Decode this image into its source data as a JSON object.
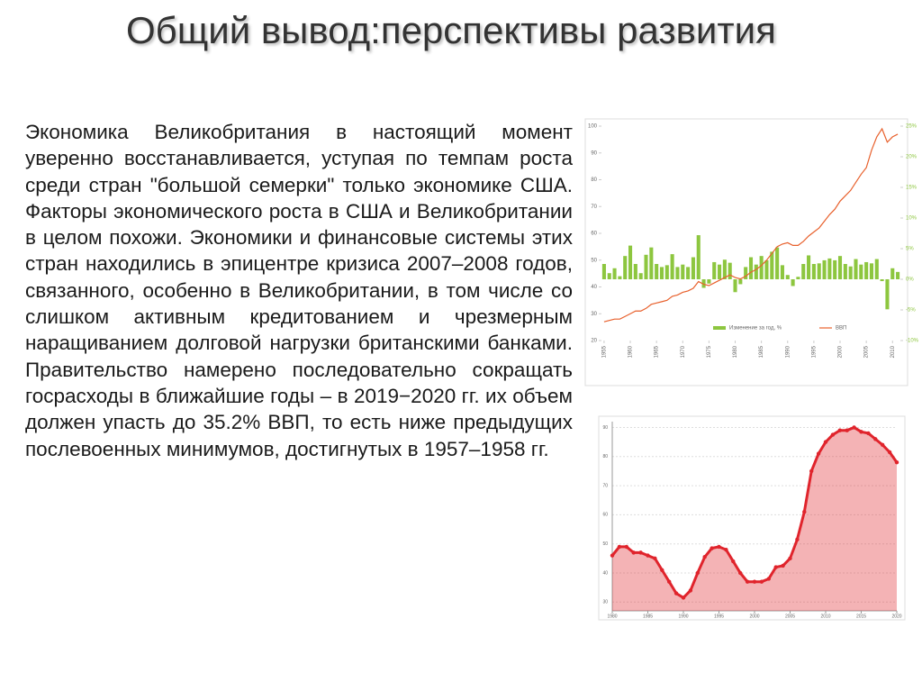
{
  "header": {
    "title": "Общий вывод:перспективы развития"
  },
  "body": {
    "text": "Экономика Великобритания в настоящий момент уверенно восстанавливается, уступая по темпам роста среди стран \"большой семерки\" только экономике США. Факторы экономического роста в США и Великобритании в целом похожи. Экономики и финансовые системы этих стран находились в эпицентре кризиса 2007–2008 годов, связанного, особенно в Великобритании, в том числе со слишком активным кредитованием и чрезмерным наращиванием долговой нагрузки британскими банками. Правительство намерено последовательно сокращать госрасходы в ближайшие годы – в 2019−2020 гг. их объем должен упасть до 35.2% ВВП, то есть ниже предыдущих послевоенных минимумов, достигнутых в 1957–1958 гг."
  },
  "chart_data": [
    {
      "type": "combo",
      "x": [
        1955,
        1956,
        1957,
        1958,
        1959,
        1960,
        1961,
        1962,
        1963,
        1964,
        1965,
        1966,
        1967,
        1968,
        1969,
        1970,
        1971,
        1972,
        1973,
        1974,
        1975,
        1976,
        1977,
        1978,
        1979,
        1980,
        1981,
        1982,
        1983,
        1984,
        1985,
        1986,
        1987,
        1988,
        1989,
        1990,
        1991,
        1992,
        1993,
        1994,
        1995,
        1996,
        1997,
        1998,
        1999,
        2000,
        2001,
        2002,
        2003,
        2004,
        2005,
        2006,
        2007,
        2008,
        2009,
        2010,
        2011
      ],
      "xlim": [
        1954.5,
        2011.5
      ],
      "xticks": [
        1955,
        1960,
        1965,
        1970,
        1975,
        1980,
        1985,
        1990,
        1995,
        2000,
        2005,
        2010
      ],
      "ylim": [
        20,
        100
      ],
      "yticks": [
        20,
        30,
        40,
        50,
        60,
        70,
        80,
        90,
        100
      ],
      "y2lim": [
        -10,
        25
      ],
      "y2ticks": [
        {
          "value": -10,
          "label": "-10%"
        },
        {
          "value": -5,
          "label": "-5%"
        },
        {
          "value": 0,
          "label": "0%"
        },
        {
          "value": 5,
          "label": "5%"
        },
        {
          "value": 10,
          "label": "10%"
        },
        {
          "value": 15,
          "label": "15%"
        },
        {
          "value": 20,
          "label": "20%"
        },
        {
          "value": 25,
          "label": "25%"
        }
      ],
      "series": [
        {
          "name": "Изменение за год, %",
          "type": "bar",
          "axis": "y2",
          "color": "#8dc63f",
          "values": [
            2.5,
            1,
            1.8,
            0.5,
            3.8,
            5.5,
            2.5,
            1,
            4,
            5.2,
            2.5,
            2,
            2.3,
            4.1,
            2,
            2.4,
            2,
            3.6,
            7.2,
            -1.4,
            -0.7,
            2.8,
            2.4,
            3.2,
            2.7,
            -2.1,
            -0.8,
            2,
            3.6,
            2.4,
            3.8,
            3.1,
            4.5,
            5.2,
            2.3,
            0.7,
            -1.1,
            0.4,
            2.5,
            3.9,
            2.5,
            2.6,
            3.1,
            3.4,
            3.1,
            3.8,
            2.5,
            2.1,
            3.3,
            2.4,
            2.8,
            2.6,
            3.3,
            -0.3,
            -4.9,
            1.8,
            1.2
          ]
        },
        {
          "name": "ВВП",
          "type": "line",
          "axis": "y",
          "color": "#e8602c",
          "values": [
            27,
            27.5,
            28,
            28,
            29,
            30,
            31,
            31,
            32,
            33.5,
            34,
            34.5,
            35,
            36.5,
            37,
            38,
            38.5,
            39.5,
            42,
            41,
            40.5,
            41.5,
            42.5,
            43.5,
            44.5,
            43.5,
            43,
            44,
            45.5,
            46.5,
            48,
            50,
            52.5,
            55,
            56,
            56.5,
            55.5,
            55.5,
            57,
            59,
            60.5,
            62,
            64.5,
            67,
            69,
            72,
            74,
            76,
            79,
            82,
            84.5,
            91,
            96,
            99,
            94,
            96,
            97
          ]
        }
      ]
    },
    {
      "type": "area",
      "x": [
        1980,
        1981,
        1982,
        1983,
        1984,
        1985,
        1986,
        1987,
        1988,
        1989,
        1990,
        1991,
        1992,
        1993,
        1994,
        1995,
        1996,
        1997,
        1998,
        1999,
        2000,
        2001,
        2002,
        2003,
        2004,
        2005,
        2006,
        2007,
        2008,
        2009,
        2010,
        2011,
        2012,
        2013,
        2014,
        2015,
        2016,
        2017,
        2018,
        2019,
        2020
      ],
      "xlim": [
        1980,
        2020
      ],
      "xticks": [
        1980,
        1985,
        1990,
        1995,
        2000,
        2005,
        2010,
        2015,
        2020
      ],
      "ylim": [
        27,
        92
      ],
      "yticks": [
        30,
        40,
        50,
        60,
        70,
        80,
        90
      ],
      "color": "#e0242c",
      "grid": true,
      "values": [
        46,
        49,
        49,
        47,
        47,
        46,
        45,
        41,
        37,
        33,
        31.5,
        34,
        40,
        45.5,
        48.5,
        49,
        48,
        44,
        40,
        37,
        37,
        37,
        38,
        42,
        42.5,
        45,
        51.5,
        61,
        75,
        81,
        85,
        87.5,
        89,
        89,
        90,
        88.5,
        88,
        86,
        84,
        81.5,
        78
      ]
    }
  ]
}
